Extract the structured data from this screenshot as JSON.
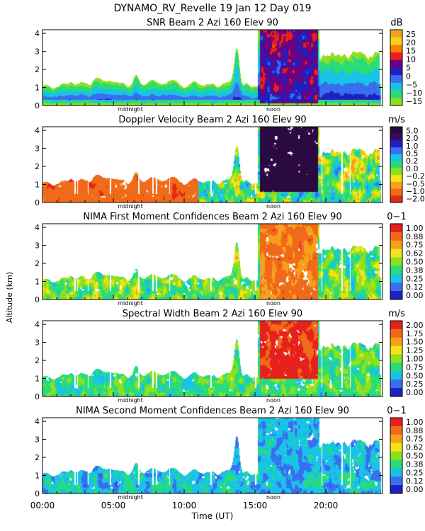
{
  "figure": {
    "title": "DYNAMO_RV_Revelle  19 Jan 12 Day 019",
    "ylabel": "Altitude (km)",
    "xlabel": "Time (UT)",
    "x_ticks": [
      "00:00",
      "05:00",
      "10:00",
      "15:00",
      "20:00"
    ],
    "midnight_label": "midnight",
    "noon_label": "noon"
  },
  "chart_data": [
    {
      "type": "heatmap",
      "title": "SNR Beam 2 Azi 160 Elev 90",
      "units": "dB",
      "xlabel": "Time (UT)",
      "ylabel": "Altitude (km)",
      "xlim": [
        0,
        24
      ],
      "ylim": [
        0,
        4.2
      ],
      "y_ticks": [
        "0",
        "1",
        "2",
        "3",
        "4"
      ],
      "colorbar_labels": [
        "25",
        "20",
        "15",
        "10",
        "5",
        "0",
        "−5",
        "−10",
        "−15"
      ],
      "colorbar_colors": [
        "#f4a41c",
        "#f5d31b",
        "#ff7f00",
        "#e8201c",
        "#6b0080",
        "#2020c0",
        "#3a6ef0",
        "#19c3e6",
        "#28dc7a",
        "#8ee01e"
      ],
      "field": "snr"
    },
    {
      "type": "heatmap",
      "title": "Doppler Velocity Beam 2 Azi 160 Elev 90",
      "units": "m/s",
      "xlabel": "Time (UT)",
      "ylabel": "Altitude (km)",
      "xlim": [
        0,
        24
      ],
      "ylim": [
        0,
        4.2
      ],
      "y_ticks": [
        "0",
        "1",
        "2",
        "3",
        "4"
      ],
      "colorbar_labels": [
        "5.0",
        "2.0",
        "1.0",
        "0.5",
        "0.2",
        "0.0",
        "−0.2",
        "−0.5",
        "−1.0",
        "−2.0"
      ],
      "colorbar_colors": [
        "#2a0a40",
        "#3a0a6a",
        "#2020c0",
        "#3a6ef0",
        "#19c3e6",
        "#28dc7a",
        "#8ee01e",
        "#f5e31b",
        "#f8a01c",
        "#f06a1a",
        "#e02a18"
      ],
      "field": "doppler"
    },
    {
      "type": "heatmap",
      "title": "NIMA First Moment Confidences Beam 2 Azi 160 Elev 90",
      "units": "0−1",
      "xlabel": "Time (UT)",
      "ylabel": "Altitude (km)",
      "xlim": [
        0,
        24
      ],
      "ylim": [
        0,
        4.2
      ],
      "y_ticks": [
        "0",
        "1",
        "2",
        "3",
        "4"
      ],
      "colorbar_labels": [
        "1.00",
        "0.88",
        "0.75",
        "0.62",
        "0.50",
        "0.38",
        "0.25",
        "0.12",
        "0.00"
      ],
      "colorbar_colors": [
        "#e8201c",
        "#f06a1a",
        "#f8a01c",
        "#f5e31b",
        "#8ee01e",
        "#28dc7a",
        "#19c3e6",
        "#3a6ef0",
        "#2020c0"
      ],
      "field": "conf1"
    },
    {
      "type": "heatmap",
      "title": "Spectral Width Beam 2 Azi 160 Elev 90",
      "units": "m/s",
      "xlabel": "Time (UT)",
      "ylabel": "Altitude (km)",
      "xlim": [
        0,
        24
      ],
      "ylim": [
        0,
        4.2
      ],
      "y_ticks": [
        "0",
        "1",
        "2",
        "3",
        "4"
      ],
      "colorbar_labels": [
        "2.00",
        "1.75",
        "1.50",
        "1.25",
        "1.00",
        "0.75",
        "0.50",
        "0.25",
        "0.00"
      ],
      "colorbar_colors": [
        "#e8201c",
        "#f06a1a",
        "#f8a01c",
        "#f5e31b",
        "#8ee01e",
        "#28dc7a",
        "#19c3e6",
        "#3a6ef0",
        "#2020c0"
      ],
      "field": "width"
    },
    {
      "type": "heatmap",
      "title": "NIMA Second Moment Confidences Beam 2 Azi 160 Elev 90",
      "units": "0−1",
      "xlabel": "Time (UT)",
      "ylabel": "Altitude (km)",
      "xlim": [
        0,
        24
      ],
      "ylim": [
        0,
        4.2
      ],
      "y_ticks": [
        "0",
        "1",
        "2",
        "3",
        "4"
      ],
      "colorbar_labels": [
        "1.00",
        "0.88",
        "0.75",
        "0.62",
        "0.50",
        "0.38",
        "0.25",
        "0.12",
        "0.00"
      ],
      "colorbar_colors": [
        "#e8201c",
        "#f06a1a",
        "#f8a01c",
        "#f5e31b",
        "#8ee01e",
        "#28dc7a",
        "#19c3e6",
        "#3a6ef0",
        "#2020c0"
      ],
      "field": "conf2"
    }
  ]
}
